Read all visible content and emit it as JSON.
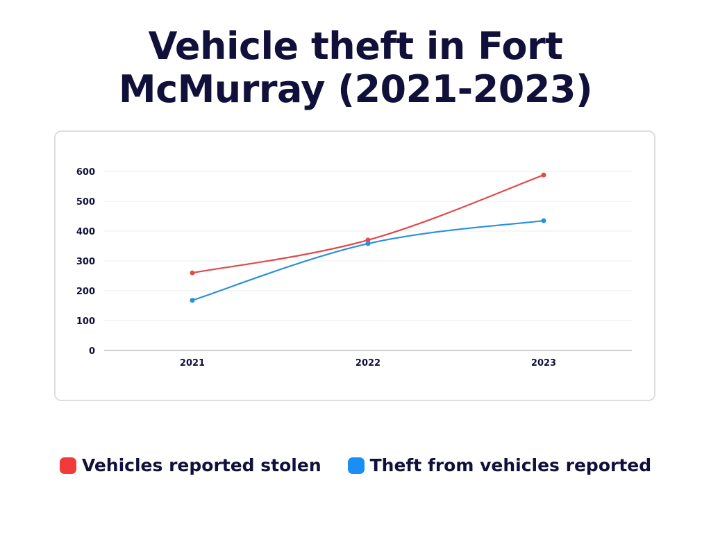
{
  "title_lines": [
    "Vehicle theft in Fort",
    "McMurray (2021-2023)"
  ],
  "chart_data": {
    "type": "line",
    "title": "Vehicle theft in Fort McMurray (2021-2023)",
    "categories": [
      "2021",
      "2022",
      "2023"
    ],
    "y_ticks": [
      "0",
      "100",
      "200",
      "300",
      "400",
      "500",
      "600"
    ],
    "ylim": [
      0,
      600
    ],
    "grid": true,
    "legend_position": "bottom",
    "series": [
      {
        "name": "Vehicles reported stolen",
        "values": [
          260,
          370,
          588
        ],
        "color": "#e04a4a"
      },
      {
        "name": "Theft from vehicles reported",
        "values": [
          168,
          358,
          435
        ],
        "color": "#2a8fdb"
      }
    ]
  },
  "legend": [
    {
      "label": "Vehicles reported stolen",
      "swatch_color": "#f23a3a"
    },
    {
      "label": "Theft from vehicles reported",
      "swatch_color": "#1a8ef5"
    }
  ]
}
